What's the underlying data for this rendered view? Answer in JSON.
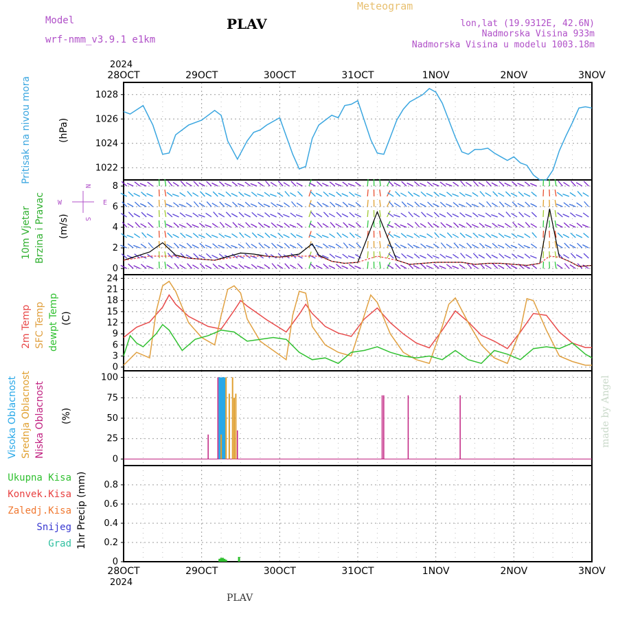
{
  "header": {
    "model_label": "Model",
    "model_name": "wrf-nmm_v3.9.1  e1km",
    "station": "PLAV",
    "meteogram": "Meteogram",
    "lonlat": "lon,lat (19.9312E, 42.6N)",
    "elevation": "Nadmorska Visina 933m",
    "model_elevation": "Nadmorska Visina u modelu 1003.18m",
    "footer_station": "PLAV",
    "credit": "made by Angel"
  },
  "time_axis": {
    "year": "2024",
    "labels": [
      "28OCT",
      "29OCT",
      "30OCT",
      "31OCT",
      "1NOV",
      "2NOV",
      "3NOV"
    ],
    "hours": 144
  },
  "colors": {
    "pressure": "#3aa6e0",
    "t2m": "#e84a4a",
    "sfc_temp": "#e0a040",
    "dewpt": "#30c030",
    "cloud_high": "#28a8e8",
    "cloud_mid": "#e0a030",
    "cloud_low": "#c02080",
    "precip_total": "#30c030",
    "convective": "#e84040",
    "freezing": "#f07830",
    "snow": "#3838d0",
    "hail": "#30c0a0",
    "wind_label": "#30b030",
    "compass": "#b050c8"
  },
  "panels": {
    "pressure": {
      "label": "Pritisak na nivou mora",
      "unit": "(hPa)",
      "ticks": [
        "1022",
        "1024",
        "1026",
        "1028"
      ]
    },
    "wind": {
      "label_line1": "10m  Vjetar",
      "label_line2": "Brzina i Pravac",
      "unit": "(m/s)",
      "ticks": [
        "0",
        "2",
        "4",
        "6",
        "8"
      ],
      "compass": {
        "n": "N",
        "s": "S",
        "e": "E",
        "w": "W"
      }
    },
    "temp": {
      "label_t2": "2m Temp",
      "label_sfc": "SFC Temp",
      "label_dew": "dewpt Temp",
      "unit": "(C)",
      "ticks": [
        "0",
        "3",
        "6",
        "9",
        "12",
        "15",
        "18",
        "21",
        "24"
      ]
    },
    "cloud": {
      "label_high": "Visoka Oblacnost",
      "label_mid": "Srednja Oblacnost",
      "label_low": "Niska Oblacnost",
      "unit": "(%)",
      "ticks": [
        "0",
        "25",
        "50",
        "75",
        "100"
      ]
    },
    "precip": {
      "legend": [
        "Ukupna Kisa",
        "Konvek.Kisa",
        "Zaledj.Kisa",
        "Snijeg",
        "Grad"
      ],
      "unit": "1hr Precip (mm)",
      "ticks": [
        "0",
        "0.2",
        "0.4",
        "0.6",
        "0.8"
      ]
    }
  },
  "chart_data": [
    {
      "type": "line",
      "name": "Pritisak na nivou mora",
      "ylabel": "(hPa)",
      "ylim": [
        1021,
        1029
      ],
      "x_hours": [
        0,
        2,
        6,
        9,
        12,
        14,
        16,
        20,
        24,
        28,
        30,
        32,
        35,
        38,
        40,
        42,
        44,
        48,
        52,
        54,
        56,
        58,
        60,
        62,
        64,
        66,
        68,
        70,
        72,
        76,
        78,
        80,
        82,
        84,
        86,
        88,
        90,
        92,
        94,
        96,
        98,
        100,
        102,
        104,
        106,
        108,
        110,
        112,
        114,
        116,
        118,
        120,
        122,
        124,
        126,
        128,
        130,
        132,
        134,
        136,
        138,
        140,
        142,
        144
      ],
      "values": [
        1026.6,
        1026.4,
        1027.1,
        1025.5,
        1023.1,
        1023.2,
        1024.7,
        1025.5,
        1025.9,
        1026.7,
        1026.3,
        1024.2,
        1022.7,
        1024.2,
        1024.9,
        1025.1,
        1025.5,
        1026.1,
        1023.1,
        1021.9,
        1022.1,
        1024.4,
        1025.5,
        1025.9,
        1026.3,
        1026.1,
        1027.1,
        1027.2,
        1027.5,
        1024.3,
        1023.2,
        1023.1,
        1024.5,
        1025.9,
        1026.8,
        1027.4,
        1027.7,
        1028.0,
        1028.5,
        1028.2,
        1027.3,
        1025.9,
        1024.5,
        1023.3,
        1023.1,
        1023.5,
        1023.5,
        1023.6,
        1023.2,
        1022.9,
        1022.6,
        1022.9,
        1022.4,
        1022.2,
        1021.4,
        1021.0,
        1021.0,
        1021.8,
        1023.4,
        1024.6,
        1025.7,
        1026.9,
        1027.0,
        1026.9
      ]
    },
    {
      "type": "line",
      "name": "10m Vjetar Brzina",
      "ylabel": "(m/s)",
      "ylim": [
        -0.6,
        8.6
      ],
      "x_hours": [
        0,
        8,
        12,
        16,
        20,
        24,
        28,
        36,
        40,
        44,
        48,
        54,
        58,
        60,
        64,
        68,
        72,
        78,
        84,
        88,
        92,
        96,
        104,
        108,
        112,
        116,
        120,
        124,
        128,
        131,
        134,
        137,
        140,
        144
      ],
      "values": [
        0.8,
        1.6,
        2.5,
        1.3,
        1.0,
        0.9,
        0.8,
        1.5,
        1.4,
        1.2,
        1.1,
        1.4,
        2.4,
        1.3,
        0.7,
        0.5,
        0.6,
        5.5,
        0.8,
        0.4,
        0.5,
        0.6,
        0.6,
        0.4,
        0.5,
        0.5,
        0.4,
        0.3,
        0.5,
        5.8,
        1.1,
        0.7,
        0.2,
        0.3
      ]
    },
    {
      "type": "line",
      "name": "Temperature",
      "ylabel": "(C)",
      "ylim": [
        -1,
        25
      ],
      "series": [
        {
          "name": "2m Temp",
          "x_hours": [
            0,
            4,
            8,
            12,
            14,
            16,
            20,
            26,
            30,
            34,
            36,
            38,
            44,
            50,
            54,
            56,
            58,
            62,
            66,
            70,
            74,
            78,
            82,
            86,
            90,
            94,
            98,
            102,
            106,
            110,
            114,
            118,
            122,
            126,
            130,
            134,
            138,
            142,
            144
          ],
          "values": [
            8.0,
            10.8,
            12.2,
            16.2,
            19.5,
            17.0,
            13.7,
            11.0,
            10.3,
            15.3,
            18.0,
            16.5,
            12.8,
            9.5,
            14.3,
            17.0,
            14.5,
            11.0,
            9.2,
            8.3,
            13.0,
            16.0,
            12.0,
            9.0,
            6.5,
            5.2,
            10.0,
            15.2,
            12.2,
            8.6,
            7.0,
            5.0,
            9.5,
            14.5,
            14.0,
            9.5,
            6.5,
            5.3,
            5.3
          ]
        },
        {
          "name": "SFC Temp",
          "x_hours": [
            0,
            4,
            8,
            10,
            12,
            14,
            16,
            20,
            24,
            28,
            30,
            32,
            34,
            36,
            38,
            42,
            46,
            50,
            52,
            54,
            56,
            58,
            62,
            66,
            70,
            74,
            76,
            78,
            82,
            86,
            90,
            94,
            98,
            100,
            102,
            106,
            110,
            114,
            118,
            122,
            124,
            126,
            130,
            134,
            138,
            142,
            144
          ],
          "values": [
            0.5,
            4.0,
            2.5,
            15.0,
            22.0,
            23.2,
            20.5,
            12.0,
            8.0,
            6.0,
            14.0,
            21.0,
            22.0,
            20.0,
            13.0,
            7.0,
            4.5,
            2.0,
            14.0,
            20.5,
            20.0,
            11.0,
            6.0,
            4.0,
            3.0,
            14.0,
            19.5,
            17.5,
            9.0,
            4.0,
            2.0,
            1.0,
            11.0,
            17.0,
            18.7,
            12.0,
            6.0,
            2.5,
            1.0,
            10.0,
            18.5,
            18.0,
            10.0,
            3.0,
            1.5,
            0.5,
            0.5
          ]
        },
        {
          "name": "dewpt Temp",
          "x_hours": [
            0,
            2,
            4,
            6,
            10,
            12,
            14,
            18,
            22,
            26,
            30,
            34,
            38,
            42,
            46,
            50,
            54,
            58,
            62,
            66,
            70,
            74,
            78,
            82,
            86,
            90,
            94,
            98,
            102,
            106,
            110,
            114,
            118,
            122,
            126,
            130,
            134,
            138,
            142,
            144
          ],
          "values": [
            3.0,
            8.5,
            6.5,
            5.5,
            9.0,
            11.5,
            10.0,
            4.5,
            7.5,
            8.5,
            10.0,
            9.5,
            7.0,
            7.5,
            8.0,
            7.5,
            4.0,
            2.0,
            2.5,
            1.0,
            4.0,
            4.5,
            5.5,
            4.0,
            3.0,
            2.5,
            3.0,
            2.0,
            4.5,
            2.0,
            1.0,
            4.5,
            3.5,
            2.0,
            5.0,
            5.5,
            5.0,
            6.5,
            3.5,
            2.5
          ]
        }
      ]
    },
    {
      "type": "bar",
      "name": "Oblacnost",
      "ylabel": "(%)",
      "ylim": [
        0,
        100
      ],
      "series": [
        {
          "name": "Visoka Oblacnost",
          "x_hours": [
            29.5,
            30.0,
            30.5,
            31.0
          ],
          "values": [
            100,
            100,
            100,
            100
          ]
        },
        {
          "name": "Srednja Oblacnost",
          "x_hours": [
            30.0,
            31.5,
            32.5,
            33.5,
            34.0,
            34.5
          ],
          "values": [
            30,
            100,
            80,
            100,
            75,
            80
          ]
        },
        {
          "name": "Niska Oblacnost",
          "x_hours": [
            26.0,
            29.0,
            35.0,
            79.5,
            80.0,
            87.5,
            103.5
          ],
          "values": [
            30,
            100,
            35,
            78,
            78,
            78,
            78
          ]
        }
      ]
    },
    {
      "type": "bar",
      "name": "1hr Precip",
      "ylabel": "1hr Precip (mm)",
      "ylim": [
        0,
        1
      ],
      "series": [
        {
          "name": "Ukupna Kisa",
          "x_hours": [
            29.5,
            30.0,
            30.5,
            31.0,
            31.5,
            35.5
          ],
          "values": [
            0.03,
            0.04,
            0.04,
            0.03,
            0.02,
            0.05
          ]
        }
      ]
    }
  ]
}
